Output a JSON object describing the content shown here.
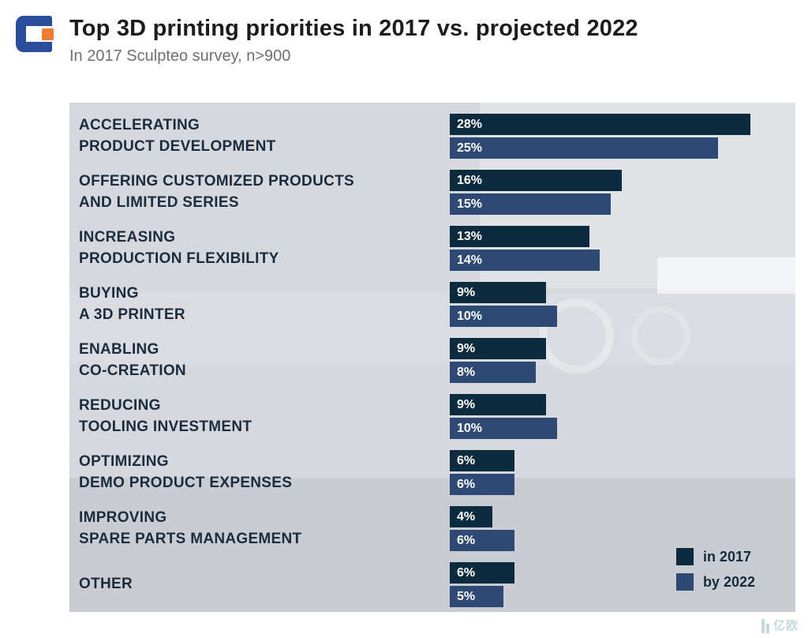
{
  "header": {
    "title": "Top 3D printing priorities in 2017 vs. projected 2022",
    "subtitle": "In 2017 Sculpteo survey, n>900"
  },
  "watermark": {
    "text": "亿欧"
  },
  "colors": {
    "series_2017": "#0c2b3e",
    "series_2022": "#2e4a74",
    "panel_background": "#d6d8dd",
    "label_text": "#1a2c3e"
  },
  "chart_data": {
    "type": "bar",
    "orientation": "horizontal",
    "title": "Top 3D printing priorities in 2017 vs. projected 2022",
    "subtitle": "In 2017 Sculpteo survey, n>900",
    "value_suffix": "%",
    "xlim": [
      0,
      30
    ],
    "grid": false,
    "legend_position": "bottom-right",
    "categories": [
      {
        "lines": [
          "ACCELERATING",
          "PRODUCT DEVELOPMENT"
        ]
      },
      {
        "lines": [
          "OFFERING CUSTOMIZED PRODUCTS",
          "AND LIMITED SERIES"
        ]
      },
      {
        "lines": [
          "INCREASING",
          "PRODUCTION FLEXIBILITY"
        ]
      },
      {
        "lines": [
          "BUYING",
          "A 3D PRINTER"
        ]
      },
      {
        "lines": [
          "ENABLING",
          "CO-CREATION"
        ]
      },
      {
        "lines": [
          "REDUCING",
          "TOOLING INVESTMENT"
        ]
      },
      {
        "lines": [
          "OPTIMIZING",
          "DEMO PRODUCT EXPENSES"
        ]
      },
      {
        "lines": [
          "IMPROVING",
          "SPARE PARTS MANAGEMENT"
        ]
      },
      {
        "lines": [
          "OTHER"
        ]
      }
    ],
    "series": [
      {
        "name": "in 2017",
        "color": "#0c2b3e",
        "values": [
          28,
          16,
          13,
          9,
          9,
          9,
          6,
          4,
          6
        ]
      },
      {
        "name": "by 2022",
        "color": "#2e4a74",
        "values": [
          25,
          15,
          14,
          10,
          8,
          10,
          6,
          6,
          5
        ]
      }
    ]
  }
}
